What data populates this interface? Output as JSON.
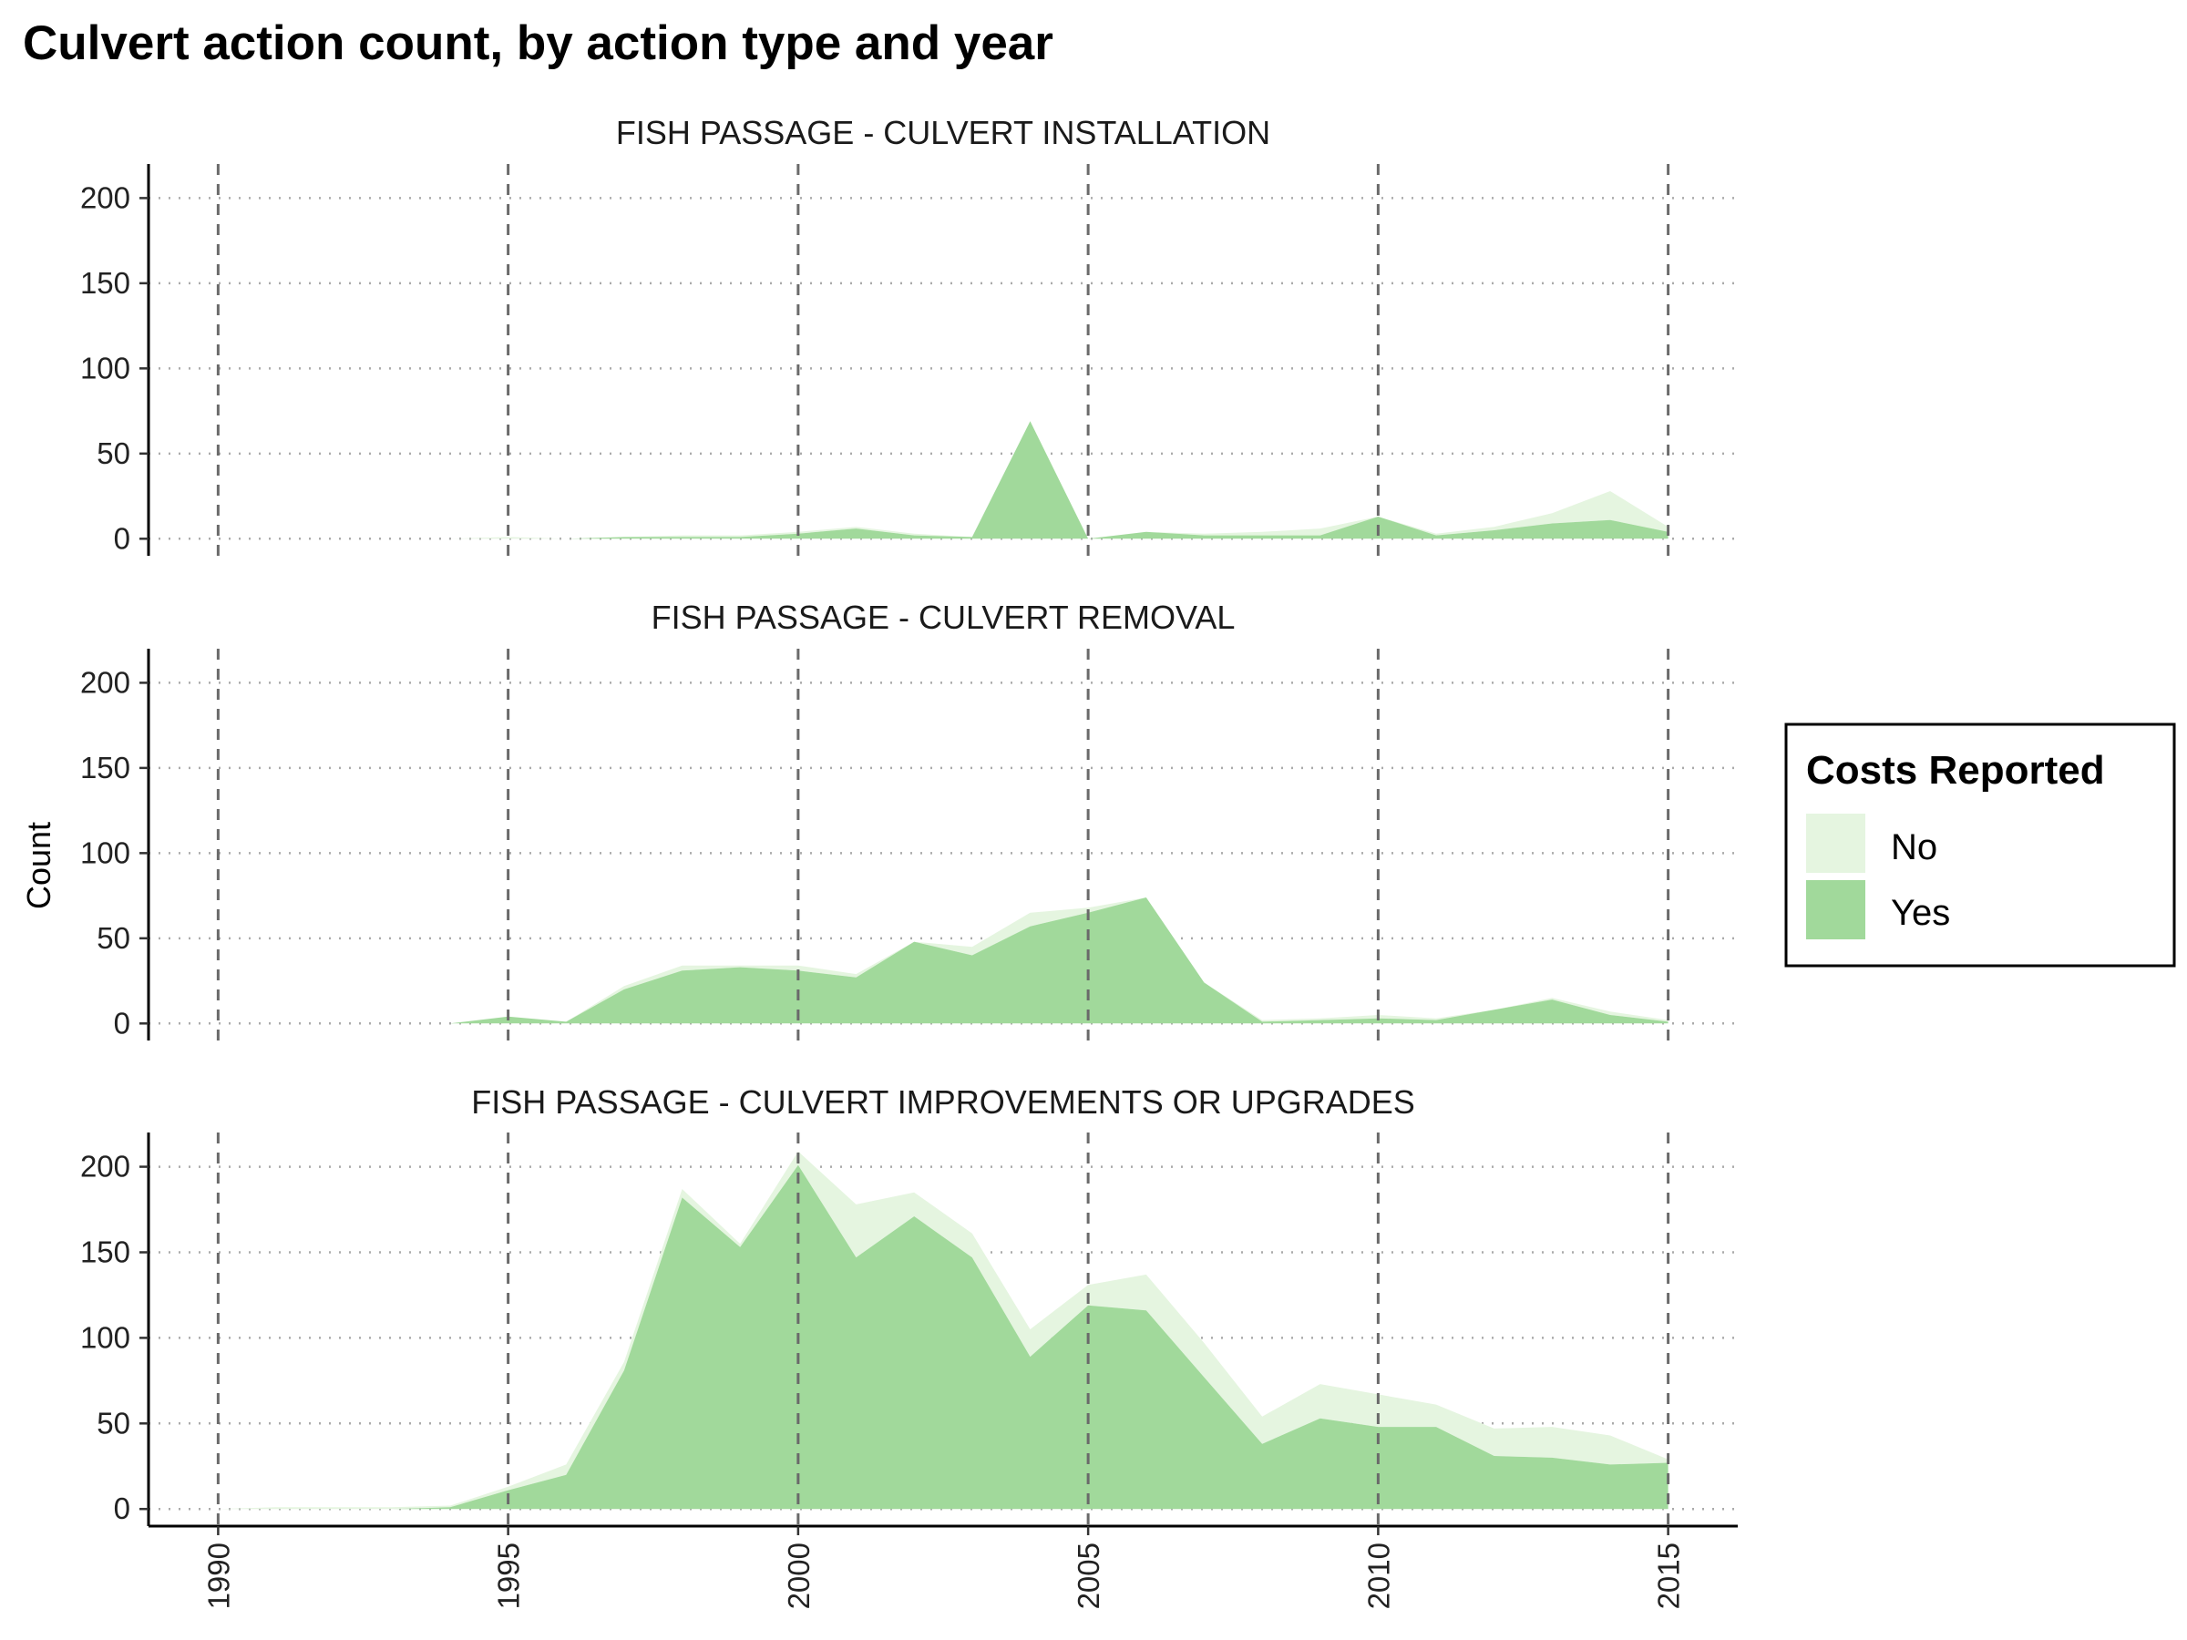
{
  "chart_data": {
    "type": "area",
    "stacked": true,
    "title": "Culvert action count, by action type and year",
    "ylabel": "Count",
    "xlabel": "",
    "xlim": [
      1988.8,
      2016.2
    ],
    "ylim": [
      -10,
      220
    ],
    "x_ticks": [
      1990,
      1995,
      2000,
      2005,
      2010,
      2015
    ],
    "x_tick_labels": [
      "1990",
      "1995",
      "2000",
      "2005",
      "2010",
      "2015"
    ],
    "y_ticks": [
      0,
      50,
      100,
      150,
      200
    ],
    "y_tick_labels": [
      "0",
      "50",
      "100",
      "150",
      "200"
    ],
    "grid": {
      "vertical_major": "dashed",
      "horizontal_major": "dotted"
    },
    "legend": {
      "title": "Costs Reported",
      "position": "right",
      "entries": [
        {
          "label": "No",
          "color": "#e5f5e0"
        },
        {
          "label": "Yes",
          "color": "#a1d99b"
        }
      ]
    },
    "x": [
      1990,
      1991,
      1992,
      1993,
      1994,
      1995,
      1996,
      1997,
      1998,
      1999,
      2000,
      2001,
      2002,
      2003,
      2004,
      2005,
      2006,
      2007,
      2008,
      2009,
      2010,
      2011,
      2012,
      2013,
      2014,
      2015
    ],
    "panels": [
      {
        "title": "FISH PASSAGE - CULVERT INSTALLATION",
        "series": [
          {
            "name": "Yes",
            "color": "#a1d99b",
            "values": [
              0,
              0,
              0,
              0,
              0,
              0,
              0,
              1,
              1,
              1,
              3,
              6,
              2,
              1,
              69,
              0,
              4,
              2,
              2,
              2,
              13,
              2,
              5,
              9,
              11,
              4
            ]
          },
          {
            "name": "No",
            "color": "#e5f5e0",
            "values": [
              0,
              0,
              0,
              0,
              0,
              1,
              0,
              0,
              1,
              1,
              1,
              1,
              1,
              0,
              0,
              0,
              0,
              1,
              2,
              4,
              0,
              1,
              2,
              6,
              17,
              3
            ]
          }
        ]
      },
      {
        "title": "FISH PASSAGE - CULVERT REMOVAL",
        "series": [
          {
            "name": "Yes",
            "color": "#a1d99b",
            "values": [
              0,
              0,
              0,
              0,
              0,
              4,
              1,
              20,
              31,
              33,
              31,
              27,
              48,
              40,
              57,
              65,
              74,
              24,
              1,
              2,
              3,
              2,
              8,
              14,
              5,
              1
            ]
          },
          {
            "name": "No",
            "color": "#e5f5e0",
            "values": [
              0,
              0,
              0,
              0,
              0,
              0,
              0,
              2,
              3,
              1,
              3,
              2,
              0,
              5,
              8,
              3,
              0,
              0,
              1,
              1,
              2,
              1,
              0,
              1,
              2,
              1
            ]
          }
        ]
      },
      {
        "title": "FISH PASSAGE - CULVERT IMPROVEMENTS OR UPGRADES",
        "series": [
          {
            "name": "Yes",
            "color": "#a1d99b",
            "values": [
              0,
              0,
              0,
              0,
              1,
              11,
              20,
              81,
              182,
              153,
              201,
              147,
              171,
              147,
              89,
              119,
              116,
              77,
              38,
              53,
              48,
              48,
              31,
              30,
              26,
              27
            ]
          },
          {
            "name": "No",
            "color": "#e5f5e0",
            "values": [
              0,
              1,
              1,
              1,
              1,
              2,
              6,
              5,
              5,
              2,
              8,
              31,
              14,
              14,
              16,
              12,
              21,
              20,
              16,
              20,
              19,
              13,
              16,
              18,
              17,
              2
            ]
          }
        ]
      }
    ]
  }
}
